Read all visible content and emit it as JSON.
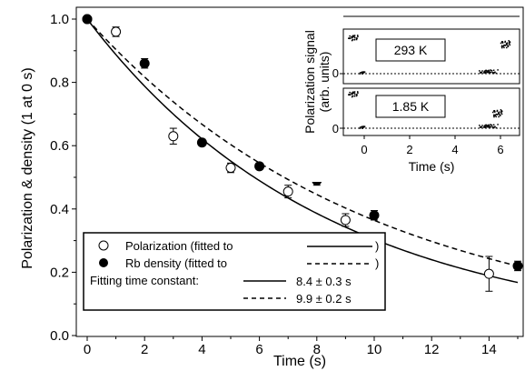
{
  "chart_data": [
    {
      "type": "scatter",
      "xlabel": "Time (s)",
      "ylabel": "Polarization & density (1 at 0 s)",
      "xlim": [
        -0.5,
        15.3
      ],
      "ylim": [
        0.0,
        1.02
      ],
      "x_ticks": [
        "0",
        "2",
        "4",
        "6",
        "8",
        "10",
        "12",
        "14"
      ],
      "y_ticks": [
        "0.0",
        "0.2",
        "0.4",
        "0.6",
        "0.8",
        "1.0"
      ],
      "series": [
        {
          "name": "Polarization",
          "marker": "open-circle",
          "points": [
            {
              "x": 0,
              "y": 1.0
            },
            {
              "x": 1,
              "y": 0.96,
              "err": 0.015
            },
            {
              "x": 3,
              "y": 0.63,
              "err": 0.025
            },
            {
              "x": 5,
              "y": 0.53,
              "err": 0.015
            },
            {
              "x": 7,
              "y": 0.455,
              "err": 0.02
            },
            {
              "x": 9,
              "y": 0.365,
              "err": 0.02
            },
            {
              "x": 14,
              "y": 0.195,
              "err": 0.055
            }
          ],
          "fit": {
            "style": "solid",
            "tau": 8.4
          }
        },
        {
          "name": "Rb density",
          "marker": "filled-circle",
          "points": [
            {
              "x": 0,
              "y": 1.0
            },
            {
              "x": 2,
              "y": 0.86,
              "err": 0.015
            },
            {
              "x": 4,
              "y": 0.61,
              "err": 0.01
            },
            {
              "x": 6,
              "y": 0.535,
              "err": 0.01
            },
            {
              "x": 8,
              "y": 0.49,
              "err": 0.015
            },
            {
              "x": 10,
              "y": 0.38,
              "err": 0.015
            },
            {
              "x": 15,
              "y": 0.22,
              "err": 0.015
            }
          ],
          "fit": {
            "style": "dashed",
            "tau": 9.9
          }
        }
      ],
      "legend": {
        "position": "bottom-left",
        "polarization": "Polarization  (fitted to",
        "density": "Rb density   (fitted to",
        "close_paren": ")",
        "fit_label": "Fitting time constant:",
        "fit1_value": "8.4  ± 0.3 s",
        "fit2_value": "9.9  ± 0.2 s"
      }
    },
    {
      "type": "line",
      "inset": true,
      "xlabel": "Time (s)",
      "ylabel": "Polarization signal",
      "ylabel2": "(arb. units)",
      "x_ticks": [
        "0",
        "2",
        "4",
        "6"
      ],
      "y_tick": "0",
      "xlim": [
        -1.0,
        6.5
      ],
      "panels": [
        {
          "label": "293 K",
          "high_level": 0.85,
          "late_level": 0.18
        },
        {
          "label": "1.85 K",
          "high_level": 0.85,
          "late_level": 0.35
        }
      ]
    }
  ]
}
